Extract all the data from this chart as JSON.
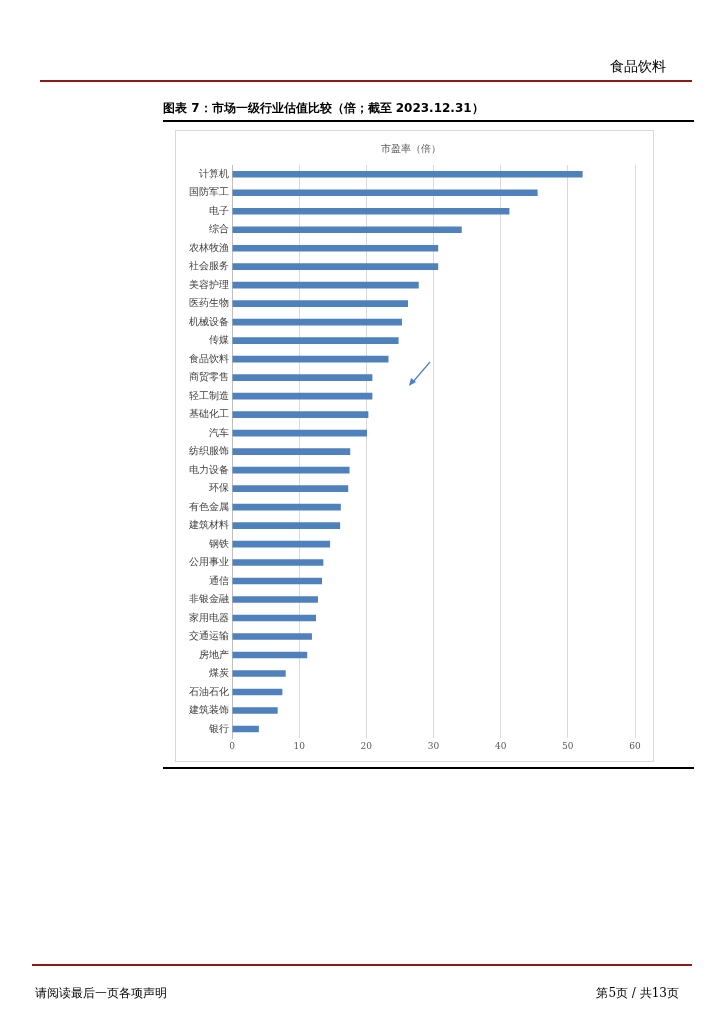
{
  "chart_data": {
    "type": "bar",
    "orientation": "horizontal",
    "title": "图表 7：市场一级行业估值比较（倍；截至 2023.12.31）",
    "subtitle": "市盈率（倍）",
    "categories": [
      "计算机",
      "国防军工",
      "电子",
      "综合",
      "农林牧渔",
      "社会服务",
      "美容护理",
      "医药生物",
      "机械设备",
      "传媒",
      "食品饮料",
      "商贸零售",
      "轻工制造",
      "基础化工",
      "汽车",
      "纺织服饰",
      "电力设备",
      "环保",
      "有色金属",
      "建筑材料",
      "钢铁",
      "公用事业",
      "通信",
      "非银金融",
      "家用电器",
      "交通运输",
      "房地产",
      "煤炭",
      "石油石化",
      "建筑装饰",
      "银行"
    ],
    "values": [
      52.2,
      45.5,
      41.3,
      34.2,
      30.7,
      30.7,
      27.8,
      26.2,
      25.3,
      24.8,
      23.3,
      20.9,
      20.9,
      20.3,
      20.1,
      17.6,
      17.5,
      17.3,
      16.2,
      16.1,
      14.6,
      13.6,
      13.4,
      12.8,
      12.5,
      11.9,
      11.2,
      8.0,
      7.5,
      6.8,
      4.0
    ],
    "color": "#4f81bd",
    "xlim": [
      0,
      60
    ],
    "xticks": [
      0,
      10,
      20,
      30,
      40,
      50,
      60
    ],
    "grid": "x",
    "legend": false,
    "annotations": [
      "食品饮料",
      "请阅读最后一页各项声明",
      "第5页 / 共13页"
    ]
  }
}
